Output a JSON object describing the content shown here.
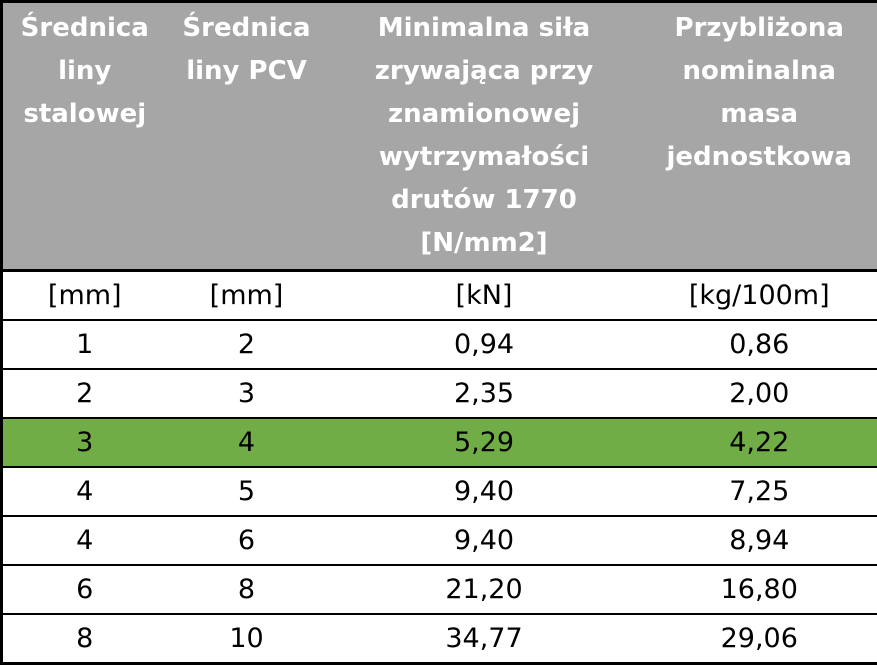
{
  "table": {
    "headers": [
      "Średnica liny stalowej",
      "Średnica liny PCV",
      "Minimalna siła zrywająca przy znamionowej wytrzymałości drutów 1770 [N/mm2]",
      "Przybliżona nominalna masa jednostkowa"
    ],
    "units": [
      "[mm]",
      "[mm]",
      "[kN]",
      "[kg/100m]"
    ],
    "rows": [
      [
        "1",
        "2",
        "0,94",
        "0,86"
      ],
      [
        "2",
        "3",
        "2,35",
        "2,00"
      ],
      [
        "3",
        "4",
        "5,29",
        "4,22"
      ],
      [
        "4",
        "5",
        "9,40",
        "7,25"
      ],
      [
        "4",
        "6",
        "9,40",
        "8,94"
      ],
      [
        "6",
        "8",
        "21,20",
        "16,80"
      ],
      [
        "8",
        "10",
        "34,77",
        "29,06"
      ]
    ],
    "highlight": {
      "row": 2,
      "color": "#70ad47"
    }
  }
}
